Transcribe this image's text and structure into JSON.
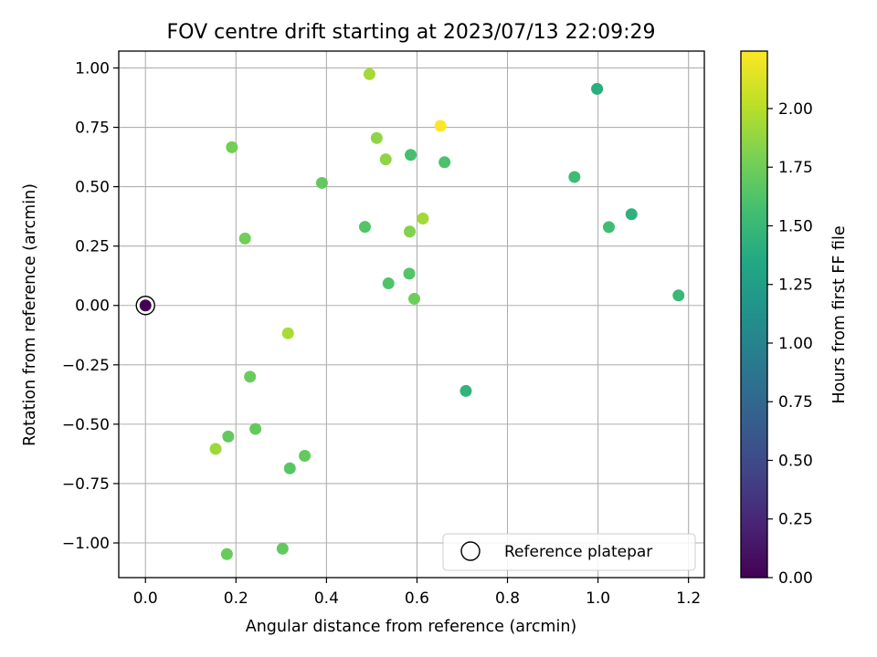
{
  "chart_data": {
    "type": "scatter",
    "title": "FOV centre drift starting at 2023/07/13 22:09:29",
    "xlabel": "Angular distance from reference (arcmin)",
    "ylabel": "Rotation from reference (arcmin)",
    "xlim": [
      -0.059,
      1.235
    ],
    "ylim": [
      -1.146,
      1.071
    ],
    "grid": true,
    "xticks": [
      0.0,
      0.2,
      0.4,
      0.6,
      0.8,
      1.0,
      1.2
    ],
    "xtick_labels": [
      "0.0",
      "0.2",
      "0.4",
      "0.6",
      "0.8",
      "1.0",
      "1.2"
    ],
    "yticks": [
      -1.0,
      -0.75,
      -0.5,
      -0.25,
      0.0,
      0.25,
      0.5,
      0.75,
      1.0
    ],
    "ytick_labels": [
      "−1.00",
      "−0.75",
      "−0.50",
      "−0.25",
      "0.00",
      "0.25",
      "0.50",
      "0.75",
      "1.00"
    ],
    "colorbar": {
      "label": "Hours from first FF file",
      "range": [
        0.0,
        2.245
      ],
      "ticks": [
        0.0,
        0.25,
        0.5,
        0.75,
        1.0,
        1.25,
        1.5,
        1.75,
        2.0
      ],
      "tick_labels": [
        "0.00",
        "0.25",
        "0.50",
        "0.75",
        "1.00",
        "1.25",
        "1.50",
        "1.75",
        "2.00"
      ],
      "colormap": "viridis"
    },
    "legend": {
      "entry": "Reference platepar",
      "location": "lower-right"
    },
    "reference_point": {
      "x": 0.0,
      "y": 0.0,
      "hours": 0.0
    },
    "points": [
      {
        "x": 0.495,
        "y": 0.974,
        "hours": 1.94
      },
      {
        "x": 0.998,
        "y": 0.912,
        "hours": 1.4
      },
      {
        "x": 0.652,
        "y": 0.756,
        "hours": 2.24
      },
      {
        "x": 0.511,
        "y": 0.705,
        "hours": 1.86
      },
      {
        "x": 0.191,
        "y": 0.666,
        "hours": 1.76
      },
      {
        "x": 0.586,
        "y": 0.634,
        "hours": 1.57
      },
      {
        "x": 0.531,
        "y": 0.615,
        "hours": 1.86
      },
      {
        "x": 0.661,
        "y": 0.603,
        "hours": 1.6
      },
      {
        "x": 0.948,
        "y": 0.541,
        "hours": 1.53
      },
      {
        "x": 0.39,
        "y": 0.516,
        "hours": 1.7
      },
      {
        "x": 1.074,
        "y": 0.384,
        "hours": 1.43
      },
      {
        "x": 0.613,
        "y": 0.366,
        "hours": 1.93
      },
      {
        "x": 0.485,
        "y": 0.331,
        "hours": 1.64
      },
      {
        "x": 1.024,
        "y": 0.33,
        "hours": 1.55
      },
      {
        "x": 0.584,
        "y": 0.311,
        "hours": 1.82
      },
      {
        "x": 0.22,
        "y": 0.282,
        "hours": 1.76
      },
      {
        "x": 0.583,
        "y": 0.134,
        "hours": 1.64
      },
      {
        "x": 0.537,
        "y": 0.093,
        "hours": 1.62
      },
      {
        "x": 1.178,
        "y": 0.042,
        "hours": 1.5
      },
      {
        "x": 0.594,
        "y": 0.028,
        "hours": 1.74
      },
      {
        "x": 0.315,
        "y": -0.117,
        "hours": 1.95
      },
      {
        "x": 0.231,
        "y": -0.3,
        "hours": 1.72
      },
      {
        "x": 0.708,
        "y": -0.36,
        "hours": 1.45
      },
      {
        "x": 0.243,
        "y": -0.52,
        "hours": 1.7
      },
      {
        "x": 0.183,
        "y": -0.552,
        "hours": 1.7
      },
      {
        "x": 0.155,
        "y": -0.604,
        "hours": 1.92
      },
      {
        "x": 0.352,
        "y": -0.633,
        "hours": 1.7
      },
      {
        "x": 0.319,
        "y": -0.686,
        "hours": 1.66
      },
      {
        "x": 0.18,
        "y": -1.047,
        "hours": 1.72
      },
      {
        "x": 0.303,
        "y": -1.024,
        "hours": 1.7
      }
    ]
  }
}
